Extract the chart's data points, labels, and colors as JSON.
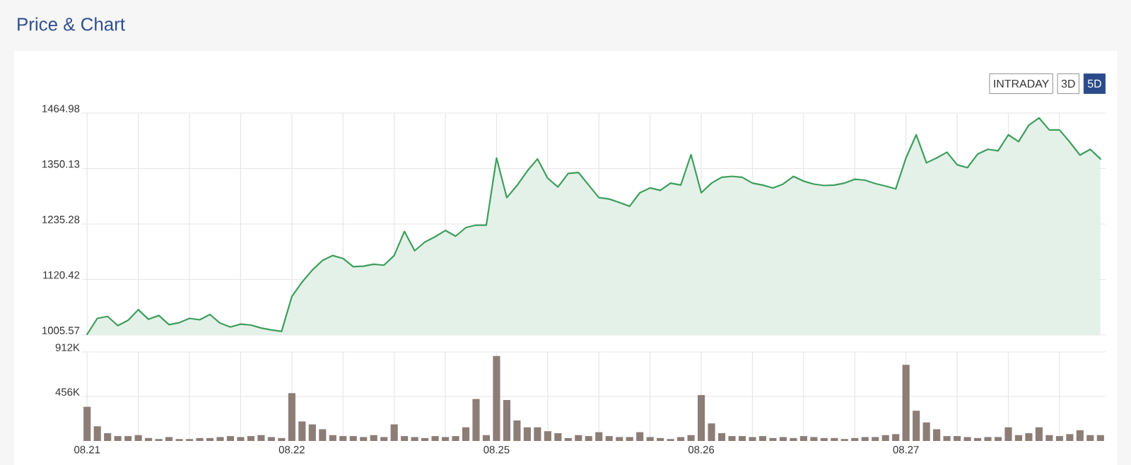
{
  "chart_data": [
    {
      "type": "area",
      "title": "Price & Chart",
      "annotations": [
        "INTRADAY",
        "3D",
        "5D"
      ],
      "categories": [
        "08.21",
        null,
        null,
        null,
        null,
        null,
        null,
        null,
        null,
        null,
        null,
        null,
        null,
        null,
        null,
        null,
        null,
        null,
        null,
        null,
        "08.22",
        null,
        null,
        null,
        null,
        null,
        null,
        null,
        null,
        null,
        null,
        null,
        null,
        null,
        null,
        null,
        null,
        null,
        null,
        null,
        "08.25",
        null,
        null,
        null,
        null,
        null,
        null,
        null,
        null,
        null,
        null,
        null,
        null,
        null,
        null,
        null,
        null,
        null,
        null,
        null,
        "08.26",
        null,
        null,
        null,
        null,
        null,
        null,
        null,
        null,
        null,
        null,
        null,
        null,
        null,
        null,
        null,
        null,
        null,
        null,
        null,
        "08.27",
        null,
        null,
        null,
        null,
        null,
        null,
        null,
        null,
        null,
        null,
        null,
        null,
        null,
        null,
        null,
        null,
        null,
        null,
        null
      ],
      "series": [
        {
          "color": "#3d9e5c",
          "values": [
            1007,
            1040,
            1044,
            1025,
            1036,
            1058,
            1038,
            1046,
            1027,
            1031,
            1040,
            1037,
            1048,
            1030,
            1022,
            1028,
            1026,
            1020,
            1016,
            1013,
            1085,
            1115,
            1140,
            1160,
            1170,
            1164,
            1147,
            1148,
            1152,
            1150,
            1170,
            1220,
            1180,
            1198,
            1209,
            1222,
            1210,
            1228,
            1233,
            1233,
            1372,
            1290,
            1315,
            1345,
            1370,
            1330,
            1312,
            1340,
            1342,
            1316,
            1290,
            1287,
            1280,
            1272,
            1300,
            1310,
            1305,
            1320,
            1316,
            1379,
            1300,
            1320,
            1332,
            1334,
            1332,
            1320,
            1316,
            1310,
            1318,
            1334,
            1324,
            1318,
            1315,
            1316,
            1320,
            1328,
            1326,
            1319,
            1314,
            1308,
            1372,
            1420,
            1362,
            1372,
            1384,
            1358,
            1352,
            1380,
            1390,
            1387,
            1420,
            1406,
            1440,
            1455,
            1430,
            1430,
            1405,
            1378,
            1390,
            1370
          ]
        }
      ],
      "ylim": [
        1005.57,
        1464.98
      ],
      "yticks": [
        1005.57,
        1120.42,
        1235.28,
        1350.13,
        1464.98
      ],
      "grid": true,
      "tick_labels": "y"
    },
    {
      "type": "bar",
      "categories": [
        "08.21",
        null,
        null,
        null,
        null,
        null,
        null,
        null,
        null,
        null,
        null,
        null,
        null,
        null,
        null,
        null,
        null,
        null,
        null,
        null,
        "08.22",
        null,
        null,
        null,
        null,
        null,
        null,
        null,
        null,
        null,
        null,
        null,
        null,
        null,
        null,
        null,
        null,
        null,
        null,
        null,
        "08.25",
        null,
        null,
        null,
        null,
        null,
        null,
        null,
        null,
        null,
        null,
        null,
        null,
        null,
        null,
        null,
        null,
        null,
        null,
        null,
        "08.26",
        null,
        null,
        null,
        null,
        null,
        null,
        null,
        null,
        null,
        null,
        null,
        null,
        null,
        null,
        null,
        null,
        null,
        null,
        null,
        "08.27",
        null,
        null,
        null,
        null,
        null,
        null,
        null,
        null,
        null,
        null,
        null,
        null,
        null,
        null,
        null,
        null,
        null,
        null,
        null
      ],
      "series": [
        {
          "color": "#8c7d77",
          "values": [
            350,
            150,
            80,
            50,
            50,
            60,
            30,
            20,
            40,
            20,
            20,
            30,
            30,
            40,
            50,
            40,
            50,
            60,
            40,
            30,
            490,
            200,
            170,
            120,
            60,
            50,
            50,
            40,
            60,
            40,
            170,
            50,
            40,
            30,
            50,
            40,
            50,
            140,
            430,
            60,
            870,
            420,
            210,
            140,
            140,
            100,
            80,
            30,
            60,
            50,
            90,
            50,
            40,
            40,
            90,
            40,
            30,
            20,
            40,
            60,
            470,
            180,
            80,
            50,
            50,
            40,
            50,
            30,
            40,
            30,
            50,
            40,
            30,
            30,
            20,
            30,
            40,
            40,
            60,
            70,
            780,
            310,
            190,
            120,
            50,
            50,
            40,
            30,
            40,
            40,
            140,
            60,
            80,
            140,
            60,
            50,
            70,
            110,
            60,
            60
          ]
        }
      ],
      "ylim": [
        0,
        912
      ],
      "yticks": [
        {
          "value": 456,
          "label": "456K"
        },
        {
          "value": 912,
          "label": "912K"
        }
      ],
      "grid": true
    }
  ]
}
